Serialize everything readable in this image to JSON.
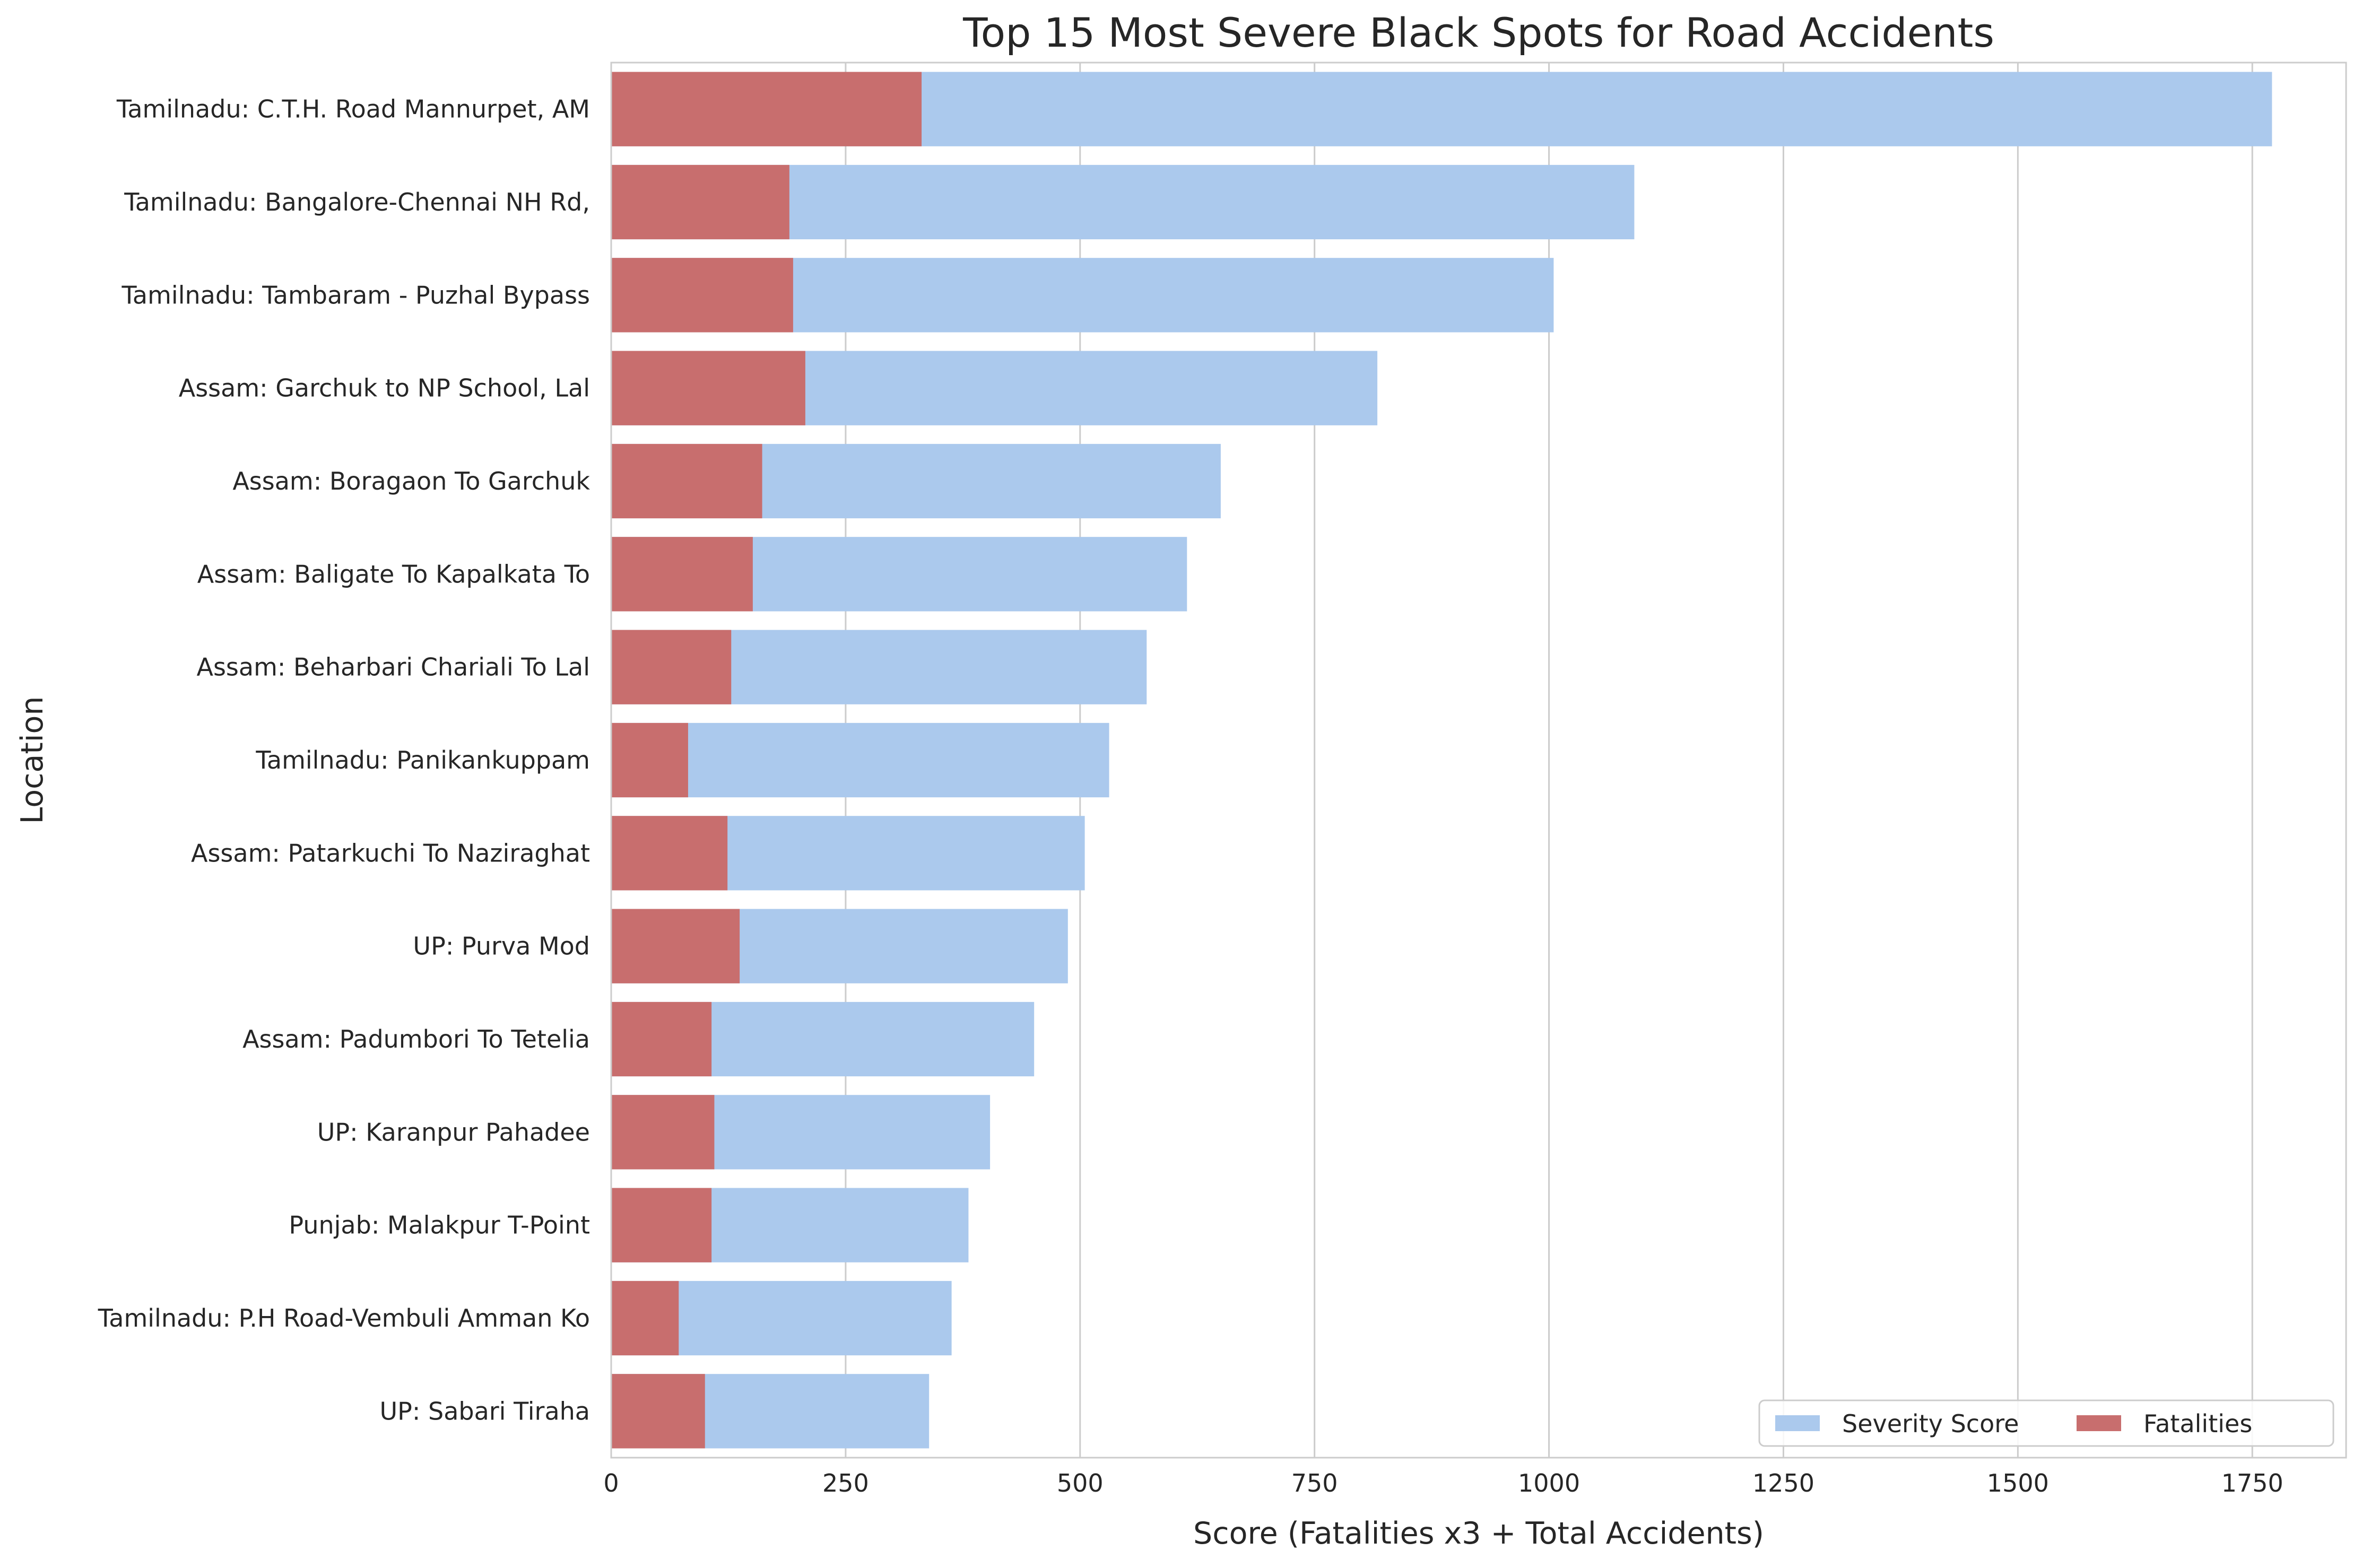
{
  "chart_data": {
    "type": "bar",
    "orientation": "horizontal",
    "title": "Top 15 Most Severe Black Spots for Road Accidents",
    "xlabel": "Score (Fatalities x3 + Total Accidents)",
    "ylabel": "Location",
    "xlim": [
      0,
      1850
    ],
    "xticks": [
      0,
      250,
      500,
      750,
      1000,
      1250,
      1500,
      1750
    ],
    "grid": "vertical",
    "legend_position": "bottom-right",
    "categories": [
      "Tamilnadu: C.T.H. Road Mannurpet, AM",
      "Tamilnadu: Bangalore-Chennai NH Rd,",
      "Tamilnadu: Tambaram - Puzhal Bypass",
      "Assam: Garchuk to NP School, Lal",
      "Assam: Boragaon To Garchuk",
      "Assam: Baligate To Kapalkata To",
      "Assam: Beharbari Chariali To Lal",
      "Tamilnadu: Panikankuppam",
      "Assam: Patarkuchi To Naziraghat",
      "UP: Purva Mod",
      "Assam: Padumbori To Tetelia",
      "UP: Karanpur Pahadee",
      "Punjab: Malakpur T-Point",
      "Tamilnadu: P.H Road-Vembuli Amman Ko",
      "UP: Sabari Tiraha"
    ],
    "series": [
      {
        "name": "Severity Score",
        "color": "#abc9ed",
        "values": [
          1771,
          1091,
          1005,
          817,
          650,
          614,
          571,
          531,
          505,
          487,
          451,
          404,
          381,
          363,
          339
        ]
      },
      {
        "name": "Fatalities",
        "color": "#c86e6e",
        "values": [
          331,
          190,
          194,
          207,
          161,
          151,
          128,
          82,
          124,
          137,
          107,
          110,
          107,
          72,
          100
        ]
      }
    ]
  }
}
